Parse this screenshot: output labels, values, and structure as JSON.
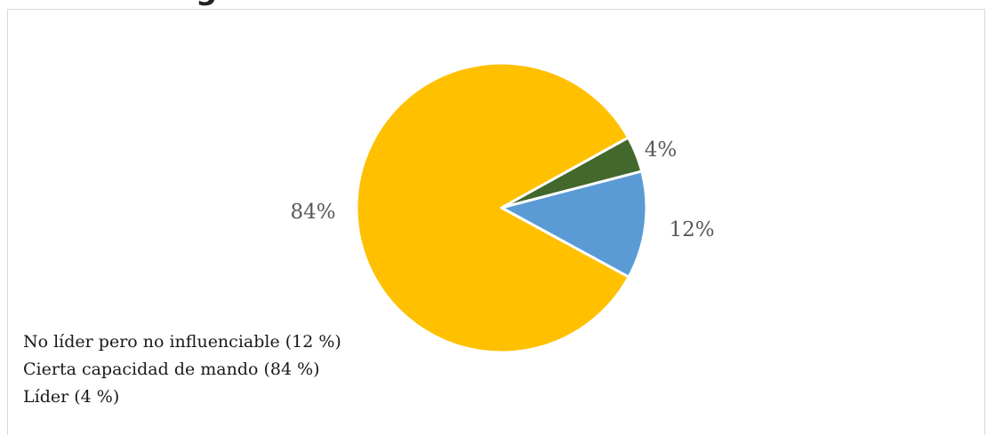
{
  "chart_data": {
    "type": "pie",
    "title_fragment": "g",
    "series": [
      {
        "slices": [
          {
            "label": "Líder (4 %)",
            "value": 4,
            "data_label": "4%",
            "color": "#43682b"
          },
          {
            "label": "No líder pero no influenciable (12 %)",
            "value": 12,
            "data_label": "12%",
            "color": "#5b9bd5"
          },
          {
            "label": "Cierta capacidad de mando (84 %)",
            "value": 84,
            "data_label": "84%",
            "color": "#ffc000"
          }
        ]
      }
    ],
    "legend": [
      "No líder pero no influenciable (12 %)",
      "Cierta capacidad de mando (84 %)",
      "Líder (4 %)"
    ],
    "legend_position": "bottom-left",
    "data_label_color": "#595959",
    "slice_border_color": "#ffffff"
  }
}
